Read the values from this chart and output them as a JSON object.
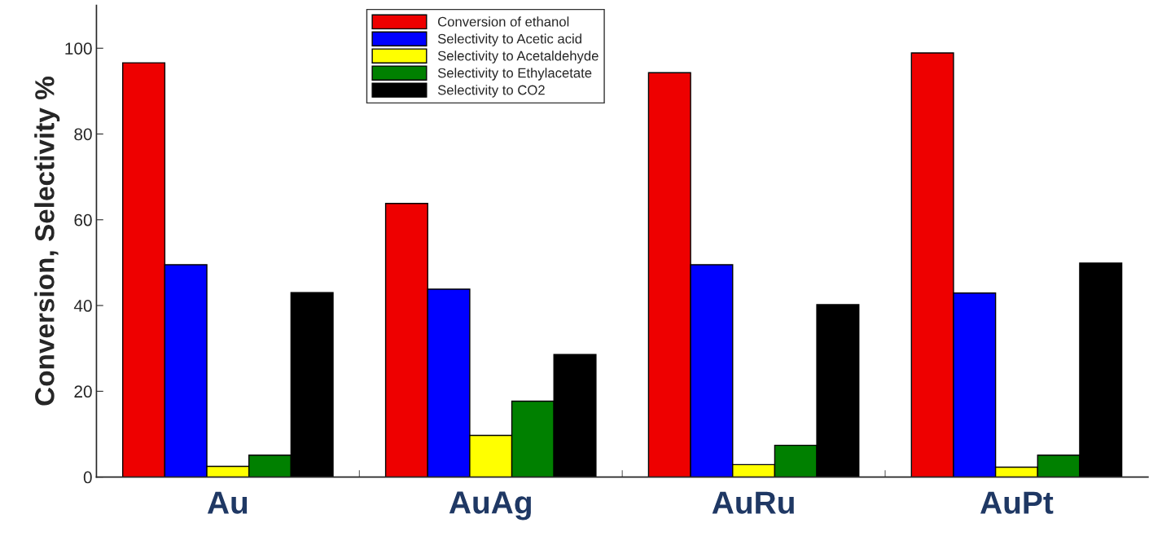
{
  "chart_data": {
    "type": "bar",
    "ylabel": "Conversion, Selectivity %",
    "categories": [
      "Au",
      "AuAg",
      "AuRu",
      "AuPt"
    ],
    "series": [
      {
        "name": "Conversion of ethanol",
        "color": "#ee0000",
        "values": [
          96.6,
          63.8,
          94.3,
          98.9
        ]
      },
      {
        "name": "Selectivity to Acetic acid",
        "color": "#0000ff",
        "values": [
          49.5,
          43.8,
          49.5,
          42.9
        ]
      },
      {
        "name": "Selectivity to Acetaldehyde",
        "color": "#ffff00",
        "values": [
          2.5,
          9.7,
          2.9,
          2.3
        ]
      },
      {
        "name": "Selectivity to Ethylacetate",
        "color": "#008000",
        "values": [
          5.1,
          17.7,
          7.4,
          5.1
        ]
      },
      {
        "name": "Selectivity to CO2",
        "color": "#000000",
        "values": [
          43.0,
          28.6,
          40.2,
          49.9
        ]
      }
    ],
    "ylim": [
      0,
      110
    ],
    "yticks": [
      0,
      20,
      40,
      60,
      80,
      100
    ],
    "grid": false,
    "legend": "top"
  }
}
